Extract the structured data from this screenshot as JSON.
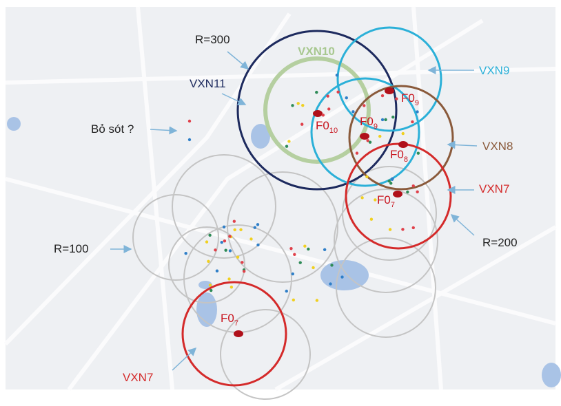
{
  "annotations": {
    "r300": "R=300",
    "vxn10": "VXN10",
    "vxn9": "VXN9",
    "vxn11": "VXN11",
    "missed": "Bỏ sót ?",
    "vxn8": "VXN8",
    "vxn7_right": "VXN7",
    "r200": "R=200",
    "r100": "R=100",
    "vxn7_bottom": "VXN7"
  },
  "f0_labels": [
    {
      "text": "F0",
      "sub": "9"
    },
    {
      "text": "F0",
      "sub": "10"
    },
    {
      "text": "F0",
      "sub": "9"
    },
    {
      "text": "F0",
      "sub": "8"
    },
    {
      "text": "F0",
      "sub": "7"
    },
    {
      "text": "F0",
      "sub": "7"
    }
  ]
}
